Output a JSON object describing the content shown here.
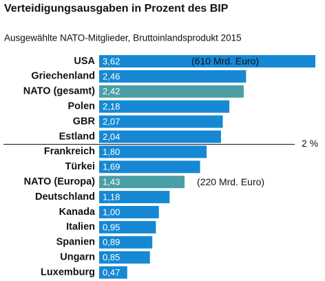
{
  "chart_data": {
    "type": "hbar",
    "title": "Verteidigungsausgaben in Prozent des BIP",
    "subtitle": "Ausgewählte NATO-Mitglieder, Bruttoinlandsprodukt 2015",
    "categories": [
      "USA",
      "Griechenland",
      "NATO (gesamt)",
      "Polen",
      "GBR",
      "Estland",
      "Frankreich",
      "Türkei",
      "NATO (Europa)",
      "Deutschland",
      "Kanada",
      "Italien",
      "Spanien",
      "Ungarn",
      "Luxemburg"
    ],
    "values": [
      3.62,
      2.46,
      2.42,
      2.18,
      2.07,
      2.04,
      1.8,
      1.69,
      1.43,
      1.18,
      1.0,
      0.95,
      0.89,
      0.85,
      0.47
    ],
    "value_labels": [
      "3,62",
      "2,46",
      "2,42",
      "2,18",
      "2,07",
      "2,04",
      "1,80",
      "1,69",
      "1,43",
      "1,18",
      "1,00",
      "0,95",
      "0,89",
      "0,85",
      "0,47"
    ],
    "colors": [
      "#1688d4",
      "#1688d4",
      "#4a9ea6",
      "#1688d4",
      "#1688d4",
      "#1688d4",
      "#1688d4",
      "#1688d4",
      "#4a9ea6",
      "#1688d4",
      "#1688d4",
      "#1688d4",
      "#1688d4",
      "#1688d4",
      "#1688d4"
    ],
    "xlim": [
      0,
      3.62
    ],
    "reference": {
      "value": 2,
      "label": "2 %"
    },
    "annotations": [
      {
        "category": "USA",
        "text": "(610 Mrd. Euro)"
      },
      {
        "category": "NATO (Europa)",
        "text": "(220 Mrd. Euro)"
      }
    ]
  }
}
